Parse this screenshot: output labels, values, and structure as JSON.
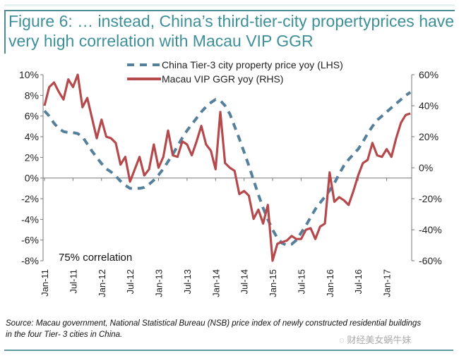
{
  "title": "Figure 6: … instead, China’s third-tier-city propertyprices have very high correlation with Macau VIP GGR",
  "source": "Source: Macau government, National Statistical Bureau (NSB) price index of newly constructed residential buildings in the four Tier- 3 cities in China.",
  "watermark": "财经美女蜗牛妹",
  "chart_data": {
    "type": "line",
    "annotation": "75% correlation",
    "x_start": "2011-01",
    "x_end": "2017-06",
    "x_tick_labels": [
      "Jan-11",
      "Jul-11",
      "Jan-12",
      "Jul-12",
      "Jan-13",
      "Jul-13",
      "Jan-14",
      "Jul-14",
      "Jan-15",
      "Jul-15",
      "Jan-16",
      "Jul-16",
      "Jan-17"
    ],
    "left_axis": {
      "ylim": [
        -8,
        10
      ],
      "ticks": [
        "10%",
        "8%",
        "6%",
        "4%",
        "2%",
        "0%",
        "-2%",
        "-4%",
        "-6%",
        "-8%"
      ]
    },
    "right_axis": {
      "ylim": [
        -60,
        60
      ],
      "ticks": [
        "60%",
        "40%",
        "20%",
        "0%",
        "-20%",
        "-40%",
        "-60%"
      ]
    },
    "legend_placement": "top-center",
    "grid": false,
    "series": [
      {
        "name": "China Tier-3 city property price yoy (LHS)",
        "axis": "left",
        "style": "dashed",
        "color": "#55809c",
        "values": [
          6.5,
          6,
          5.3,
          4.8,
          4.5,
          4.4,
          4.4,
          4.3,
          4,
          3.3,
          2.6,
          2,
          1.4,
          0.9,
          0.6,
          0.2,
          -0.3,
          -0.7,
          -1,
          -1,
          -1,
          -0.9,
          -0.6,
          -0.2,
          0.3,
          0.9,
          1.6,
          2.3,
          3.1,
          3.9,
          4.6,
          5.2,
          5.8,
          6.4,
          6.9,
          7.3,
          7.6,
          7.5,
          7.0,
          6.2,
          5.0,
          3.8,
          2.5,
          1.2,
          -0.2,
          -1.6,
          -2.9,
          -4.0,
          -5.0,
          -5.8,
          -6.3,
          -6.5,
          -6.4,
          -6.0,
          -5.3,
          -4.6,
          -3.8,
          -3.0,
          -2.4,
          -1.8,
          -1.2,
          -0.5,
          0.4,
          1.2,
          1.8,
          2.3,
          2.8,
          3.5,
          4.3,
          5.0,
          5.6,
          6.0,
          6.4,
          6.8,
          7.2,
          7.6,
          8.0,
          8.3
        ]
      },
      {
        "name": "Macau VIP GGR yoy (RHS)",
        "axis": "right",
        "style": "solid",
        "color": "#b54a4c",
        "values": [
          40,
          52,
          55,
          49,
          44,
          57,
          52,
          60,
          39,
          45,
          32,
          19,
          31,
          20,
          19,
          16,
          2,
          7,
          -9,
          -1,
          7,
          -5,
          -1,
          15,
          0,
          7,
          24,
          8,
          7,
          17,
          15,
          8,
          17,
          27,
          15,
          11,
          -1,
          36,
          3,
          0,
          -2,
          -17,
          -15,
          -18,
          -33,
          -27,
          -36,
          -24,
          -60,
          -49,
          -48,
          -47,
          -44,
          -46,
          -46,
          -40,
          -39,
          -46,
          -38,
          -36,
          -3,
          -22,
          -19,
          -21,
          -24,
          -15,
          -5,
          3,
          5,
          16,
          8,
          7,
          12,
          7,
          19,
          29,
          34,
          35
        ]
      }
    ]
  }
}
